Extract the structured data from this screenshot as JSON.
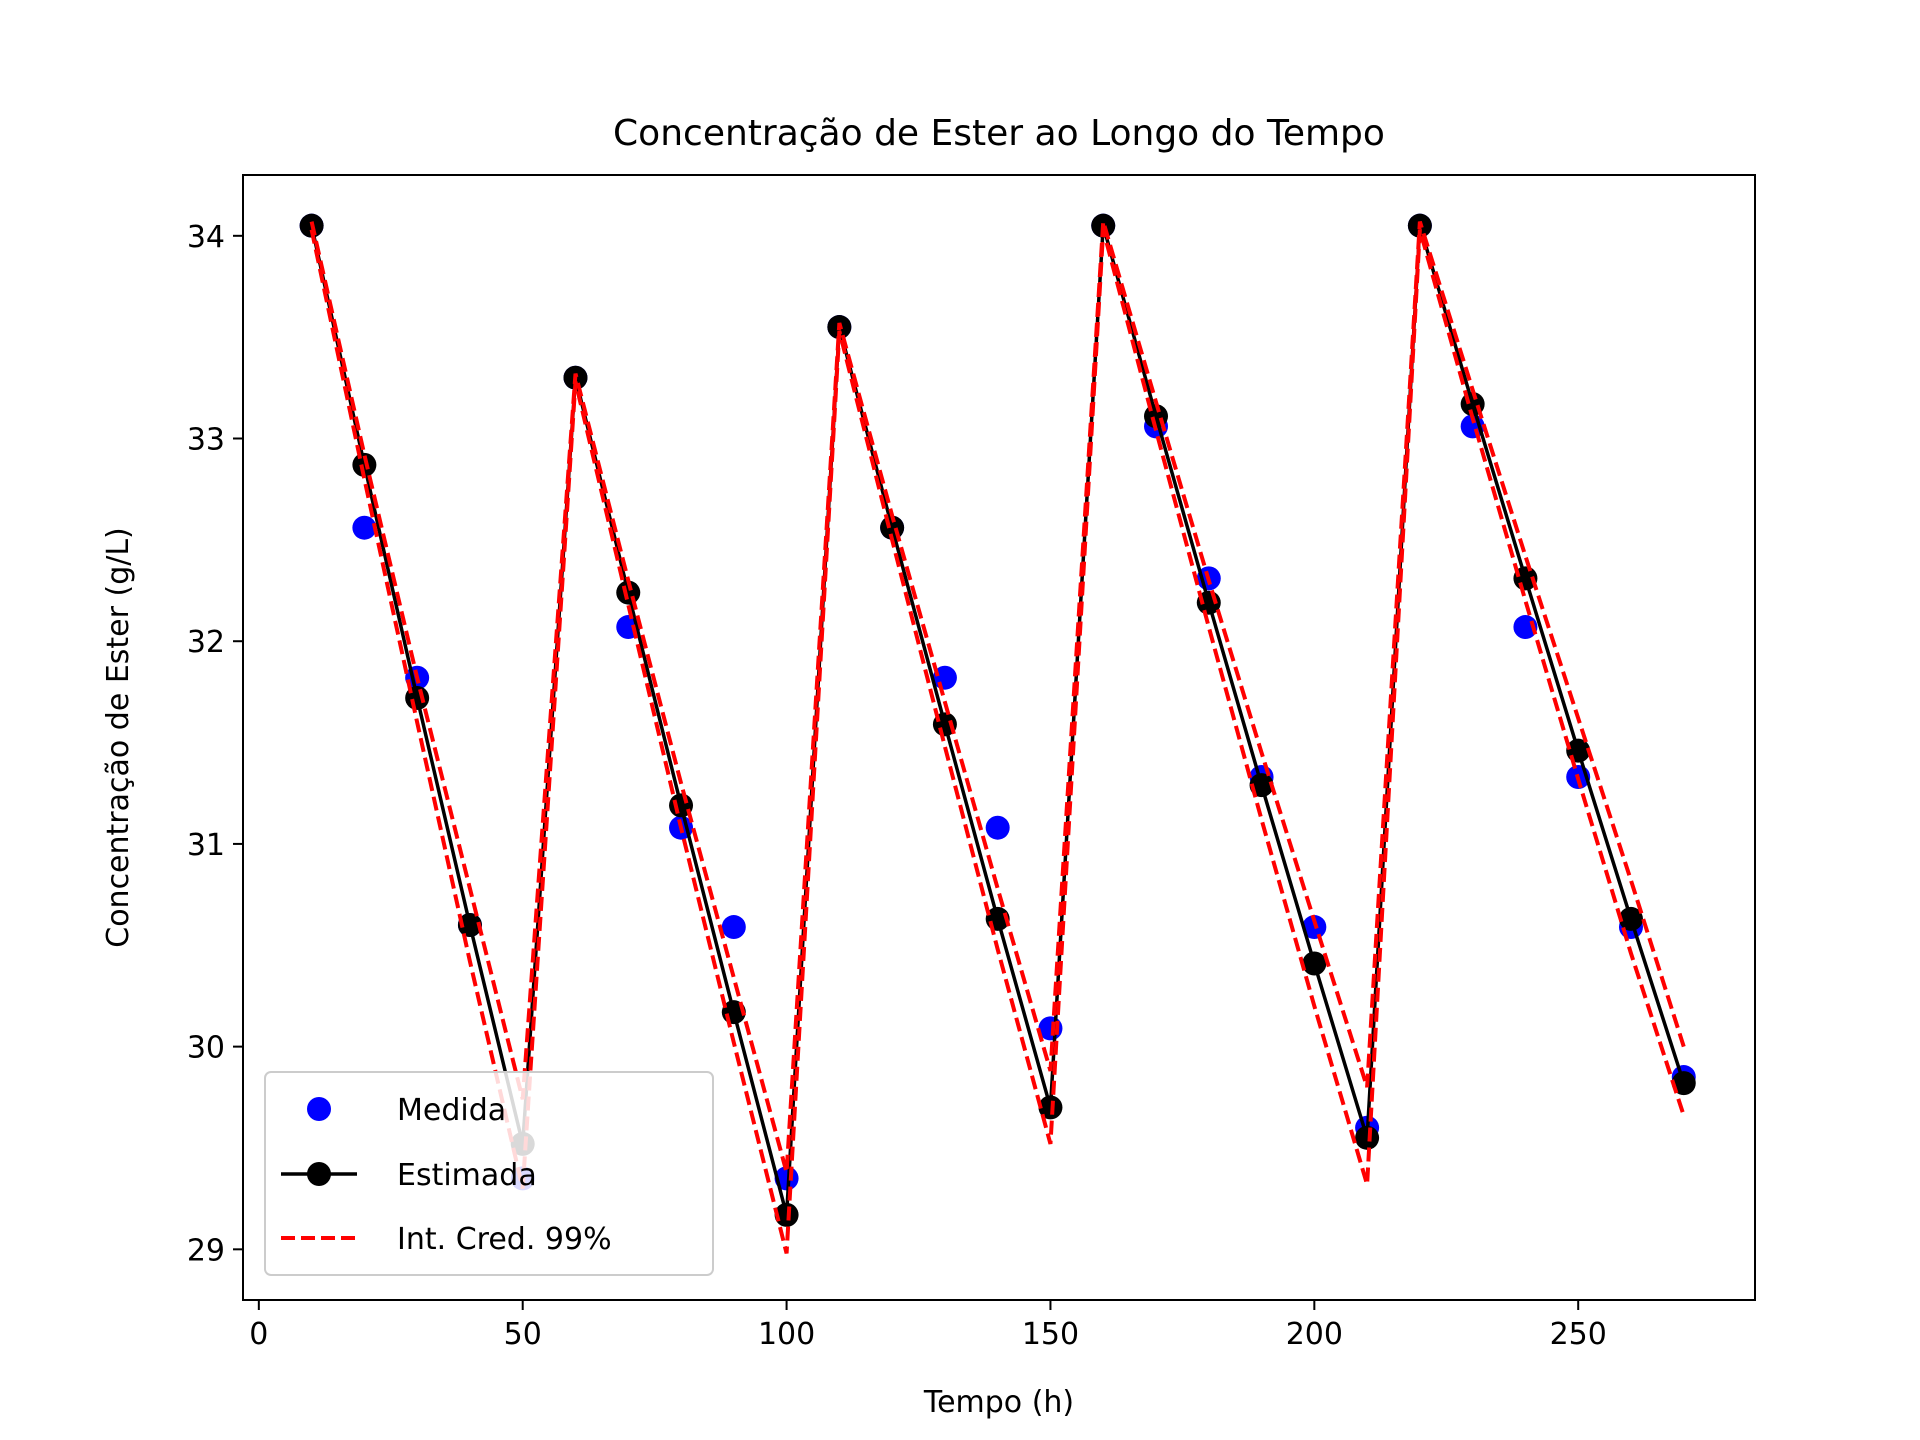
{
  "chart_data": {
    "type": "line",
    "title": "Concentração de Ester ao Longo do Tempo",
    "xlabel": "Tempo (h)",
    "ylabel": "Concentração de Ester (g/L)",
    "xlim": [
      -3,
      283.5
    ],
    "ylim": [
      28.75,
      34.3
    ],
    "xticks": [
      0,
      50,
      100,
      150,
      200,
      250
    ],
    "yticks": [
      29,
      30,
      31,
      32,
      33,
      34
    ],
    "grid": false,
    "legend_position": "lower-left",
    "x": [
      10,
      20,
      30,
      40,
      50,
      60,
      70,
      80,
      90,
      100,
      110,
      120,
      130,
      140,
      150,
      160,
      170,
      180,
      190,
      200,
      210,
      220,
      230,
      240,
      250,
      260,
      270
    ],
    "series": [
      {
        "name": "Medida",
        "style": "markers",
        "color": "#0000ff",
        "values": [
          34.05,
          32.56,
          31.82,
          30.6,
          29.35,
          33.3,
          32.07,
          31.08,
          30.59,
          29.35,
          33.55,
          32.56,
          31.82,
          31.08,
          30.09,
          34.05,
          33.06,
          32.31,
          31.33,
          30.59,
          29.6,
          34.05,
          33.06,
          32.07,
          31.33,
          30.59,
          29.85
        ]
      },
      {
        "name": "Estimada",
        "style": "line-markers",
        "color": "#000000",
        "values": [
          34.05,
          32.87,
          31.72,
          30.6,
          29.52,
          33.3,
          32.24,
          31.19,
          30.17,
          29.17,
          33.55,
          32.56,
          31.59,
          30.63,
          29.7,
          34.05,
          33.11,
          32.19,
          31.29,
          30.41,
          29.55,
          34.05,
          33.17,
          32.31,
          31.46,
          30.63,
          29.82
        ]
      },
      {
        "name": "Int. Cred. 99%",
        "style": "dashed",
        "color": "#ff0000",
        "lower": [
          34.03,
          32.8,
          31.6,
          30.42,
          29.3,
          33.28,
          32.18,
          31.08,
          30.02,
          28.98,
          33.53,
          32.5,
          31.48,
          30.48,
          29.52,
          34.03,
          33.04,
          32.07,
          31.12,
          30.2,
          29.32,
          34.03,
          33.1,
          32.2,
          31.32,
          30.46,
          29.66
        ],
        "upper": [
          34.07,
          32.92,
          31.82,
          30.78,
          29.74,
          33.32,
          32.3,
          31.3,
          30.34,
          29.38,
          33.57,
          32.62,
          31.7,
          30.78,
          29.88,
          34.07,
          33.18,
          32.3,
          31.45,
          30.62,
          29.8,
          34.07,
          33.24,
          32.42,
          31.62,
          30.82,
          30.0
        ]
      }
    ]
  }
}
